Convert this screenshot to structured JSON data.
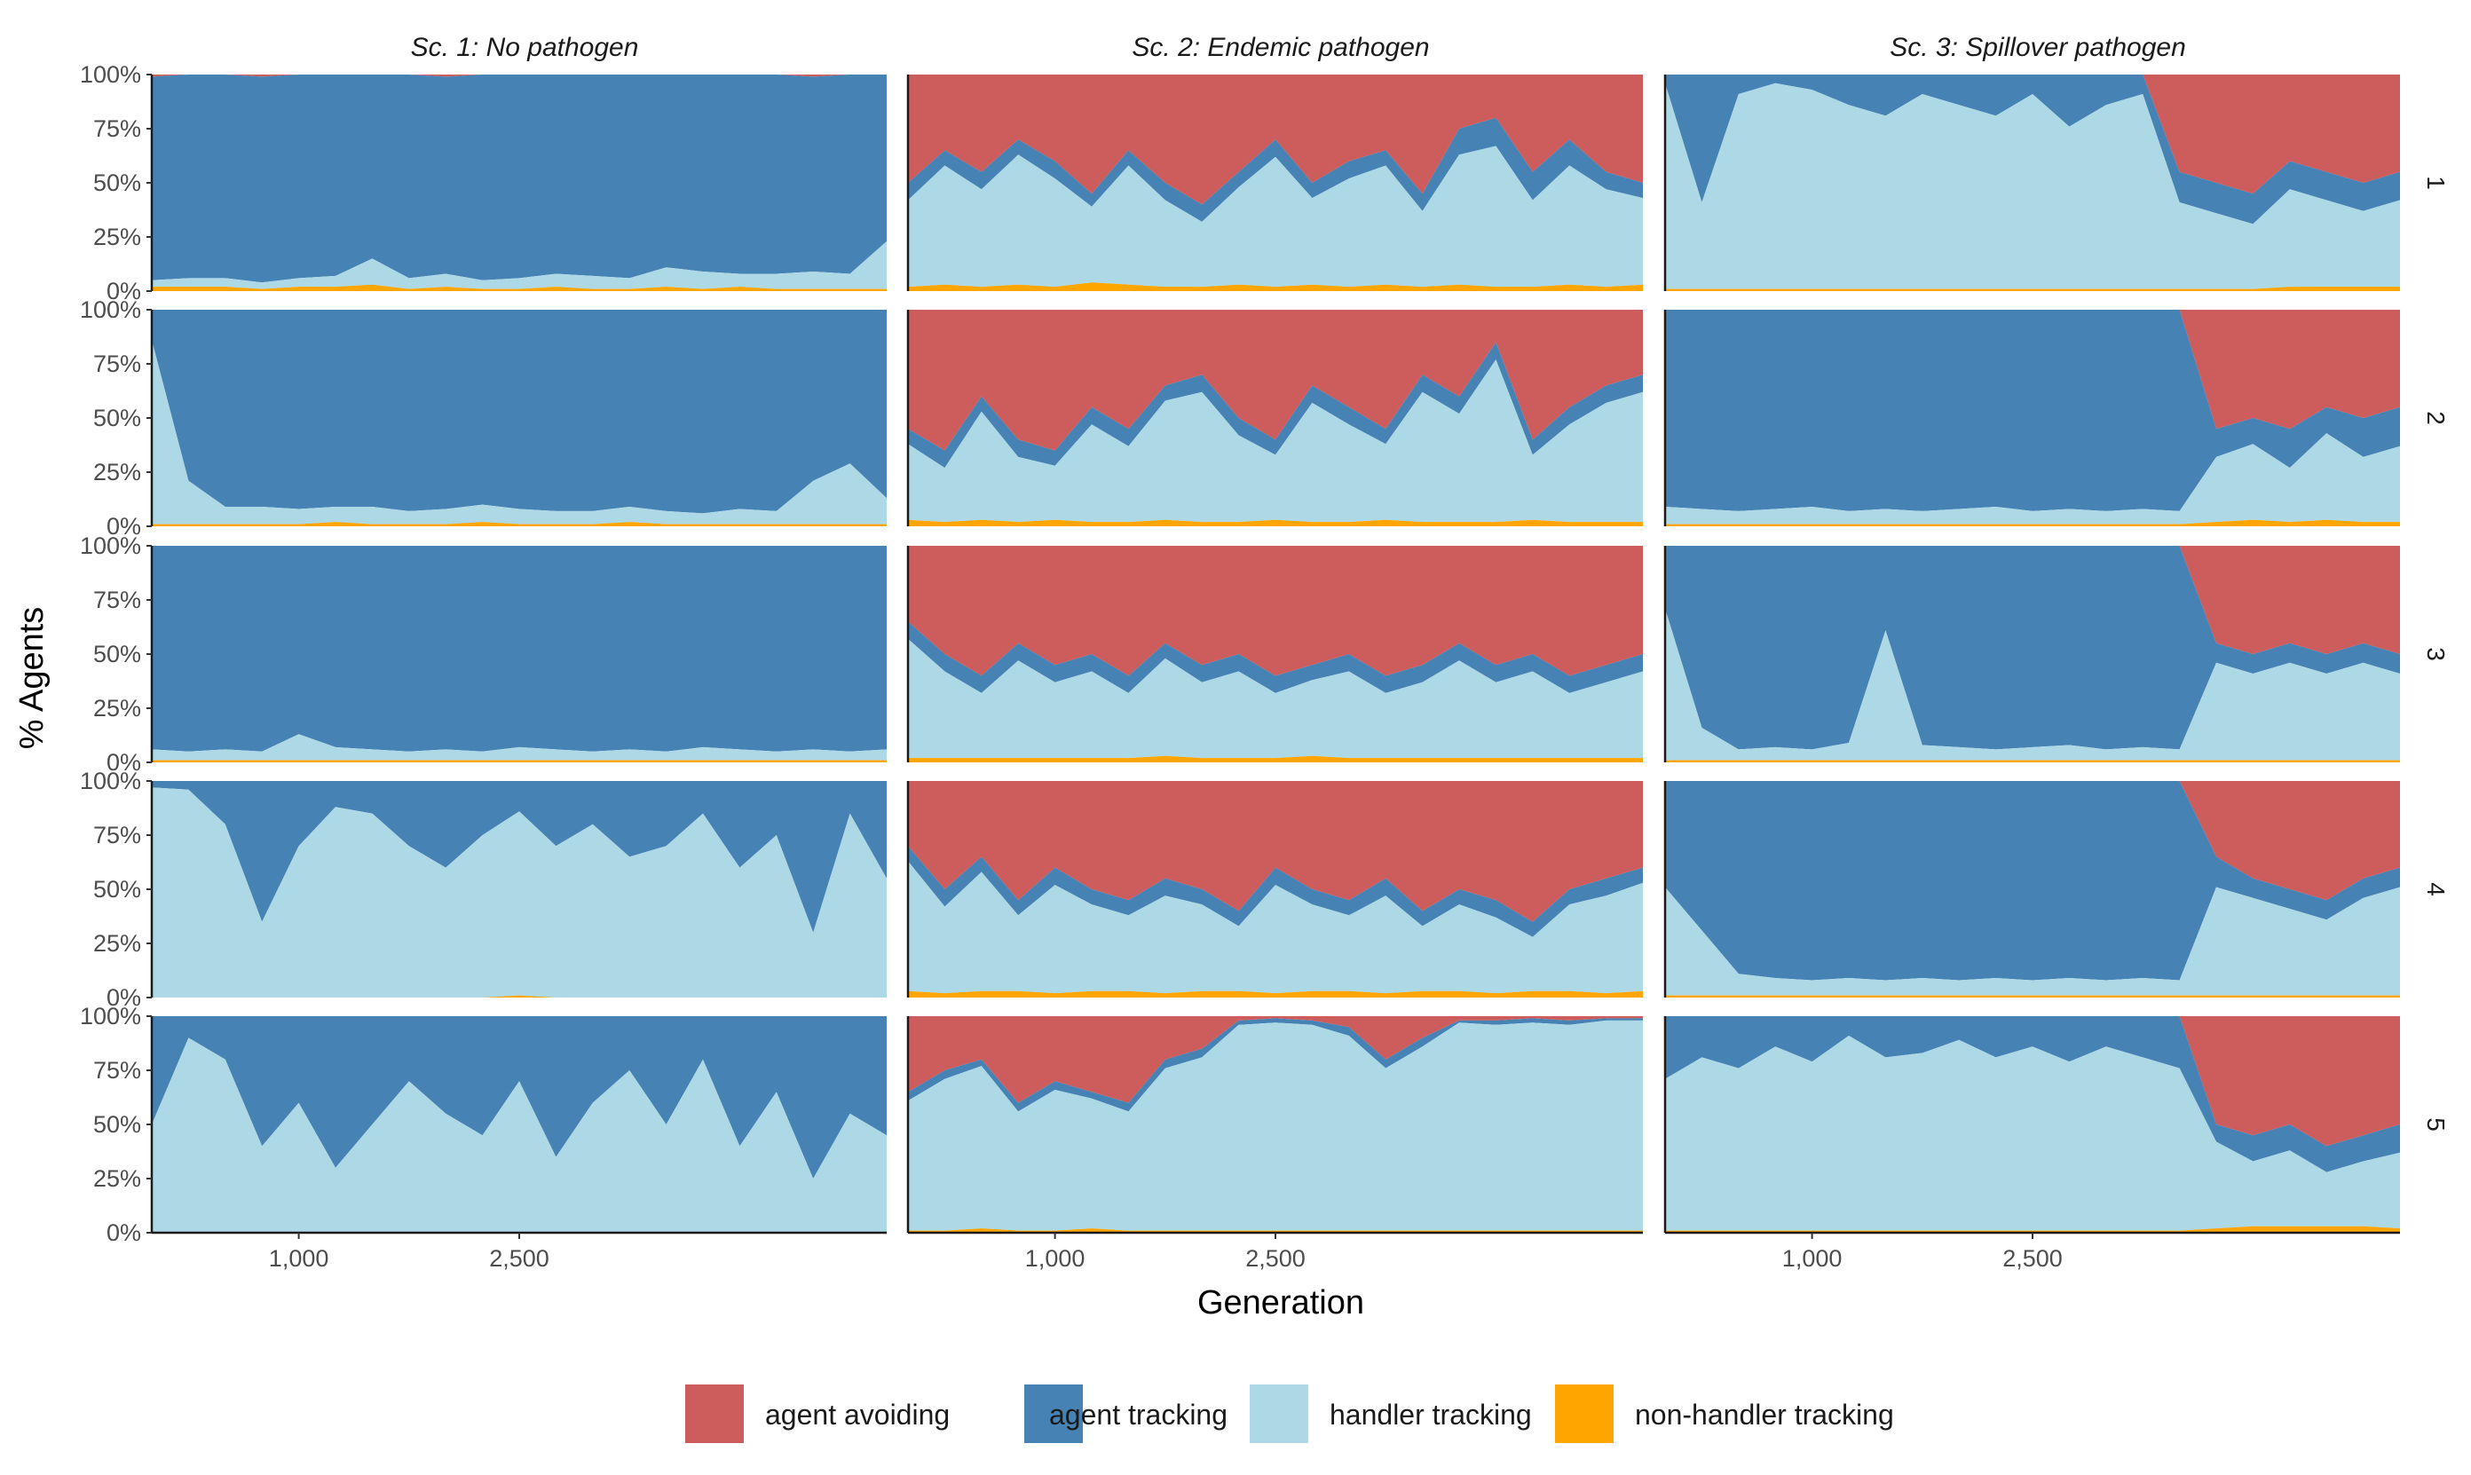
{
  "chart_data": {
    "type": "area",
    "stacking": "percent",
    "facets": {
      "columns": [
        "Sc. 1: No pathogen",
        "Sc. 2: Endemic pathogen",
        "Sc. 3: Spillover pathogen"
      ],
      "rows": [
        "1",
        "2",
        "3",
        "4",
        "5"
      ]
    },
    "xlabel": "Generation",
    "ylabel": "% Agents",
    "xlim": [
      0,
      5000
    ],
    "ylim": [
      0,
      100
    ],
    "x_ticks": [
      1000,
      2500
    ],
    "x_tick_labels": [
      "1,000",
      "2,500"
    ],
    "y_ticks": [
      0,
      25,
      50,
      75,
      100
    ],
    "y_tick_labels": [
      "0%",
      "25%",
      "50%",
      "75%",
      "100%"
    ],
    "x": [
      0,
      250,
      500,
      750,
      1000,
      1250,
      1500,
      1750,
      2000,
      2250,
      2500,
      2750,
      3000,
      3250,
      3500,
      3750,
      4000,
      4250,
      4500,
      4750,
      5000
    ],
    "series_order": [
      "non-handler tracking",
      "handler tracking",
      "agent tracking",
      "agent avoiding"
    ],
    "colors": {
      "agent avoiding": "#cd5c5c",
      "agent tracking": "#4682b4",
      "handler tracking": "#add8e6",
      "non-handler tracking": "#ffa500"
    },
    "legend": {
      "position": "bottom",
      "entries": [
        "agent avoiding",
        "agent tracking",
        "handler tracking",
        "non-handler tracking"
      ]
    },
    "panels": [
      {
        "column": 0,
        "row": 0,
        "nonhandler": [
          2,
          2,
          2,
          1,
          2,
          2,
          3,
          1,
          2,
          1,
          1,
          2,
          1,
          1,
          2,
          1,
          2,
          1,
          1,
          1,
          1
        ],
        "handler": [
          3,
          4,
          4,
          3,
          4,
          5,
          12,
          5,
          6,
          4,
          5,
          6,
          6,
          5,
          9,
          8,
          6,
          7,
          8,
          7,
          22
        ],
        "avoiding": [
          1,
          0,
          0,
          1,
          0,
          0,
          0,
          0,
          1,
          0,
          0,
          0,
          0,
          0,
          0,
          0,
          0,
          0,
          1,
          0,
          0
        ]
      },
      {
        "column": 0,
        "row": 1,
        "nonhandler": [
          1,
          1,
          1,
          1,
          1,
          2,
          1,
          1,
          1,
          2,
          1,
          1,
          1,
          2,
          1,
          1,
          1,
          1,
          1,
          1,
          1
        ],
        "handler": [
          85,
          20,
          8,
          8,
          7,
          7,
          8,
          6,
          7,
          8,
          7,
          6,
          6,
          7,
          6,
          5,
          7,
          6,
          20,
          28,
          12
        ],
        "avoiding": [
          0,
          0,
          0,
          0,
          0,
          0,
          0,
          0,
          0,
          0,
          0,
          0,
          0,
          0,
          0,
          0,
          0,
          0,
          0,
          0,
          0
        ]
      },
      {
        "column": 0,
        "row": 2,
        "nonhandler": [
          1,
          1,
          1,
          1,
          1,
          1,
          1,
          1,
          1,
          1,
          1,
          1,
          1,
          1,
          1,
          1,
          1,
          1,
          1,
          1,
          1
        ],
        "handler": [
          5,
          4,
          5,
          4,
          12,
          6,
          5,
          4,
          5,
          4,
          6,
          5,
          4,
          5,
          4,
          6,
          5,
          4,
          5,
          4,
          5
        ],
        "avoiding": [
          0,
          0,
          0,
          0,
          0,
          0,
          0,
          0,
          0,
          0,
          0,
          0,
          0,
          0,
          0,
          0,
          0,
          0,
          0,
          0,
          0
        ]
      },
      {
        "column": 0,
        "row": 3,
        "nonhandler": [
          0,
          0,
          0,
          0,
          0,
          0,
          0,
          0,
          0,
          0,
          1,
          0,
          0,
          0,
          0,
          0,
          0,
          0,
          0,
          0,
          0
        ],
        "handler": [
          97,
          96,
          80,
          35,
          70,
          88,
          85,
          70,
          60,
          75,
          85,
          70,
          80,
          65,
          70,
          85,
          60,
          75,
          30,
          85,
          55
        ],
        "avoiding": [
          0,
          0,
          0,
          0,
          0,
          0,
          0,
          0,
          0,
          0,
          0,
          0,
          0,
          0,
          0,
          0,
          0,
          0,
          0,
          0,
          0
        ]
      },
      {
        "column": 0,
        "row": 4,
        "nonhandler": [
          0,
          0,
          0,
          0,
          0,
          0,
          0,
          0,
          0,
          0,
          0,
          0,
          0,
          0,
          0,
          0,
          0,
          0,
          0,
          0,
          0
        ],
        "handler": [
          50,
          90,
          80,
          40,
          60,
          30,
          50,
          70,
          55,
          45,
          70,
          35,
          60,
          75,
          50,
          80,
          40,
          65,
          25,
          55,
          45
        ],
        "avoiding": [
          0,
          0,
          0,
          0,
          0,
          0,
          0,
          0,
          0,
          0,
          0,
          0,
          0,
          0,
          0,
          0,
          0,
          0,
          0,
          0,
          0
        ]
      },
      {
        "column": 1,
        "row": 0,
        "nonhandler": [
          2,
          3,
          2,
          3,
          2,
          4,
          3,
          2,
          2,
          3,
          2,
          3,
          2,
          3,
          2,
          3,
          2,
          2,
          3,
          2,
          3
        ],
        "handler": [
          40,
          55,
          45,
          60,
          50,
          35,
          55,
          40,
          30,
          45,
          60,
          40,
          50,
          55,
          35,
          60,
          65,
          40,
          55,
          45,
          40
        ],
        "avoiding": [
          50,
          35,
          45,
          30,
          40,
          55,
          35,
          50,
          60,
          45,
          30,
          50,
          40,
          35,
          55,
          25,
          20,
          45,
          30,
          45,
          50
        ]
      },
      {
        "column": 1,
        "row": 1,
        "nonhandler": [
          3,
          2,
          3,
          2,
          3,
          2,
          2,
          3,
          2,
          2,
          3,
          2,
          2,
          3,
          2,
          2,
          2,
          3,
          2,
          2,
          2
        ],
        "handler": [
          35,
          25,
          50,
          30,
          25,
          45,
          35,
          55,
          60,
          40,
          30,
          55,
          45,
          35,
          60,
          50,
          75,
          30,
          45,
          55,
          60
        ],
        "avoiding": [
          55,
          65,
          40,
          60,
          65,
          45,
          55,
          35,
          30,
          50,
          60,
          35,
          45,
          55,
          30,
          40,
          15,
          60,
          45,
          35,
          30
        ]
      },
      {
        "column": 1,
        "row": 2,
        "nonhandler": [
          2,
          2,
          2,
          2,
          2,
          2,
          2,
          3,
          2,
          2,
          2,
          3,
          2,
          2,
          2,
          2,
          2,
          2,
          2,
          2,
          2
        ],
        "handler": [
          55,
          40,
          30,
          45,
          35,
          40,
          30,
          45,
          35,
          40,
          30,
          35,
          40,
          30,
          35,
          45,
          35,
          40,
          30,
          35,
          40
        ],
        "avoiding": [
          35,
          50,
          60,
          45,
          55,
          50,
          60,
          45,
          55,
          50,
          60,
          55,
          50,
          60,
          55,
          45,
          55,
          50,
          60,
          55,
          50
        ]
      },
      {
        "column": 1,
        "row": 3,
        "nonhandler": [
          3,
          2,
          3,
          3,
          2,
          3,
          3,
          2,
          3,
          3,
          2,
          3,
          3,
          2,
          3,
          3,
          2,
          3,
          3,
          2,
          3
        ],
        "handler": [
          60,
          40,
          55,
          35,
          50,
          40,
          35,
          45,
          40,
          30,
          50,
          40,
          35,
          45,
          30,
          40,
          35,
          25,
          40,
          45,
          50
        ],
        "avoiding": [
          30,
          50,
          35,
          55,
          40,
          50,
          55,
          45,
          50,
          60,
          40,
          50,
          55,
          45,
          60,
          50,
          55,
          65,
          50,
          45,
          40
        ]
      },
      {
        "column": 1,
        "row": 4,
        "nonhandler": [
          1,
          1,
          2,
          1,
          1,
          2,
          1,
          1,
          1,
          1,
          1,
          1,
          1,
          1,
          1,
          1,
          1,
          1,
          1,
          1,
          1
        ],
        "handler": [
          60,
          70,
          75,
          55,
          65,
          60,
          55,
          75,
          80,
          95,
          96,
          95,
          90,
          75,
          85,
          96,
          95,
          96,
          95,
          97,
          97
        ],
        "avoiding": [
          35,
          25,
          20,
          40,
          30,
          35,
          40,
          20,
          15,
          2,
          1,
          2,
          5,
          20,
          10,
          2,
          2,
          1,
          2,
          1,
          1
        ]
      },
      {
        "column": 2,
        "row": 0,
        "nonhandler": [
          1,
          1,
          1,
          1,
          1,
          1,
          1,
          1,
          1,
          1,
          1,
          1,
          1,
          1,
          1,
          1,
          1,
          2,
          2,
          2,
          2
        ],
        "handler": [
          95,
          40,
          90,
          95,
          92,
          85,
          80,
          90,
          85,
          80,
          90,
          75,
          85,
          90,
          40,
          35,
          30,
          45,
          40,
          35,
          40
        ],
        "avoiding": [
          0,
          0,
          0,
          0,
          0,
          0,
          0,
          0,
          0,
          0,
          0,
          0,
          0,
          0,
          45,
          50,
          55,
          40,
          45,
          50,
          45
        ]
      },
      {
        "column": 2,
        "row": 1,
        "nonhandler": [
          1,
          1,
          1,
          1,
          1,
          1,
          1,
          1,
          1,
          1,
          1,
          1,
          1,
          1,
          1,
          2,
          3,
          2,
          3,
          2,
          2
        ],
        "handler": [
          8,
          7,
          6,
          7,
          8,
          6,
          7,
          6,
          7,
          8,
          6,
          7,
          6,
          7,
          6,
          30,
          35,
          25,
          40,
          30,
          35
        ],
        "avoiding": [
          0,
          0,
          0,
          0,
          0,
          0,
          0,
          0,
          0,
          0,
          0,
          0,
          0,
          0,
          0,
          55,
          50,
          55,
          45,
          50,
          45
        ]
      },
      {
        "column": 2,
        "row": 2,
        "nonhandler": [
          1,
          1,
          1,
          1,
          1,
          1,
          1,
          1,
          1,
          1,
          1,
          1,
          1,
          1,
          1,
          1,
          1,
          1,
          1,
          1,
          1
        ],
        "handler": [
          70,
          15,
          5,
          6,
          5,
          8,
          60,
          7,
          6,
          5,
          6,
          7,
          5,
          6,
          5,
          45,
          40,
          45,
          40,
          45,
          40
        ],
        "avoiding": [
          0,
          0,
          0,
          0,
          0,
          0,
          0,
          0,
          0,
          0,
          0,
          0,
          0,
          0,
          0,
          45,
          50,
          45,
          50,
          45,
          50
        ]
      },
      {
        "column": 2,
        "row": 3,
        "nonhandler": [
          1,
          1,
          1,
          1,
          1,
          1,
          1,
          1,
          1,
          1,
          1,
          1,
          1,
          1,
          1,
          1,
          1,
          1,
          1,
          1,
          1
        ],
        "handler": [
          50,
          30,
          10,
          8,
          7,
          8,
          7,
          8,
          7,
          8,
          7,
          8,
          7,
          8,
          7,
          50,
          45,
          40,
          35,
          45,
          50
        ],
        "avoiding": [
          0,
          0,
          0,
          0,
          0,
          0,
          0,
          0,
          0,
          0,
          0,
          0,
          0,
          0,
          0,
          35,
          45,
          50,
          55,
          45,
          40
        ]
      },
      {
        "column": 2,
        "row": 4,
        "nonhandler": [
          1,
          1,
          1,
          1,
          1,
          1,
          1,
          1,
          1,
          1,
          1,
          1,
          1,
          1,
          1,
          2,
          3,
          3,
          3,
          3,
          2
        ],
        "handler": [
          70,
          80,
          75,
          85,
          78,
          90,
          80,
          82,
          88,
          80,
          85,
          78,
          85,
          80,
          75,
          40,
          30,
          35,
          25,
          30,
          35
        ],
        "avoiding": [
          0,
          0,
          0,
          0,
          0,
          0,
          0,
          0,
          0,
          0,
          0,
          0,
          0,
          0,
          0,
          50,
          55,
          50,
          60,
          55,
          50
        ]
      }
    ]
  }
}
